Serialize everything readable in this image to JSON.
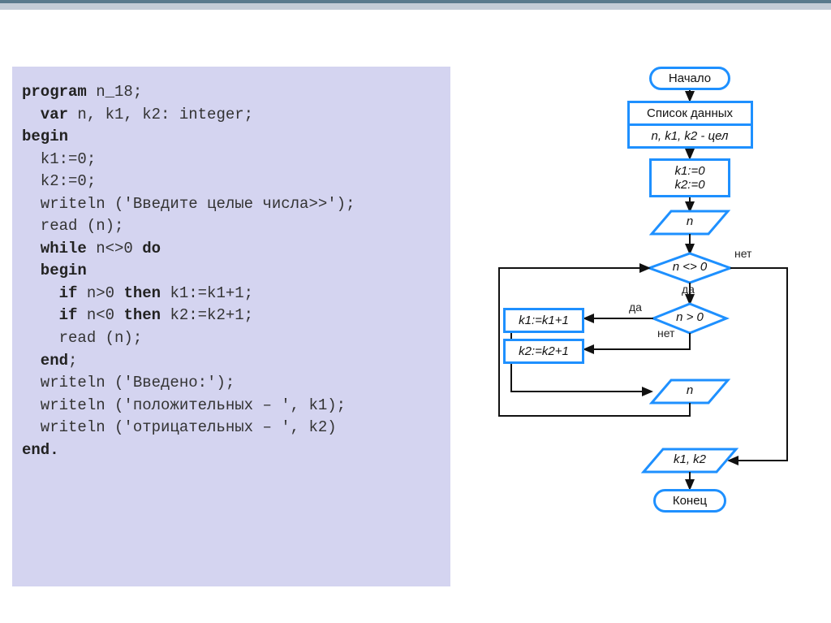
{
  "colors": {
    "header_top": "#5a7a8c",
    "header_bottom": "#c4ccd6",
    "code_bg": "#d4d4f0",
    "flow_border": "#1e90ff",
    "flow_fill": "#ffffff",
    "text": "#222222"
  },
  "code": {
    "lines": [
      {
        "t": "program",
        "k": true,
        "s": " n_18;"
      },
      {
        "t": "  var",
        "k": true,
        "s": " n, k1, k2: integer;"
      },
      {
        "t": "begin",
        "k": true,
        "s": ""
      },
      {
        "t": "",
        "k": false,
        "s": "  k1:=0;"
      },
      {
        "t": "",
        "k": false,
        "s": "  k2:=0;"
      },
      {
        "t": "",
        "k": false,
        "s": "  writeln ('Введите целые числа>>');"
      },
      {
        "t": "",
        "k": false,
        "s": "  read (n);"
      },
      {
        "t": "  while",
        "k": true,
        "s2": " n<>0 ",
        "t2": "do",
        "k2": true
      },
      {
        "t": "  begin",
        "k": true,
        "s": ""
      },
      {
        "t": "    if",
        "k": true,
        "s2": " n>0 ",
        "t2": "then",
        "k2": true,
        "s3": " k1:=k1+1;"
      },
      {
        "t": "    if",
        "k": true,
        "s2": " n<0 ",
        "t2": "then",
        "k2": true,
        "s3": " k2:=k2+1;"
      },
      {
        "t": "",
        "k": false,
        "s": "    read (n);"
      },
      {
        "t": "  end",
        "k": true,
        "s": ";"
      },
      {
        "t": "",
        "k": false,
        "s": "  writeln ('Введено:');"
      },
      {
        "t": "",
        "k": false,
        "s": "  writeln ('положительных – ', k1);"
      },
      {
        "t": "",
        "k": false,
        "s": "  writeln ('отрицательных – ', k2)"
      },
      {
        "t": "end.",
        "k": true,
        "s": ""
      }
    ]
  },
  "flow": {
    "border_color": "#1e90ff",
    "fill_color": "#ffffff",
    "arrow_color": "#111111",
    "start": "Начало",
    "data_list": "Список данных",
    "vars": "n, k1, k2 - цел",
    "init": "k1:=0\nk2:=0",
    "input1": "n",
    "cond1": "n <> 0",
    "cond2": "n > 0",
    "act1": "k1:=k1+1",
    "act2": "k2:=k2+1",
    "input2": "n",
    "output": "k1, k2",
    "end": "Конец",
    "yes": "да",
    "no": "нет",
    "font_size_node": 15,
    "font_size_label": 14,
    "line_width": 2
  }
}
